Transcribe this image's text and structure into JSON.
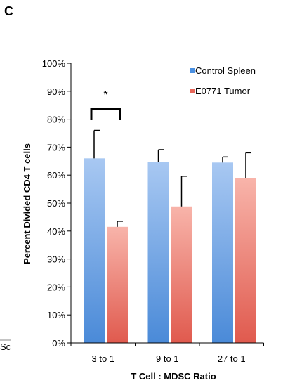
{
  "panel_label": "C",
  "cropped_text": "Sc",
  "colors": {
    "control_top": "#a8c8f2",
    "control_bottom": "#4a8ad8",
    "tumor_top": "#f8b4aa",
    "tumor_bottom": "#e05a4e",
    "control_legend": "#4a90e2",
    "tumor_legend": "#e8675a"
  },
  "chart_data": {
    "type": "bar",
    "categories": [
      "3 to 1",
      "9 to 1",
      "27 to 1"
    ],
    "series": [
      {
        "name": "Control Spleen",
        "values": [
          66,
          64.8,
          64.5
        ],
        "errors": [
          10,
          4.3,
          2
        ]
      },
      {
        "name": "E0771 Tumor",
        "values": [
          41.5,
          48.8,
          58.8
        ],
        "errors": [
          2,
          10.8,
          9.2
        ]
      }
    ],
    "ylim": [
      0,
      100
    ],
    "yticks": [
      "0%",
      "10%",
      "20%",
      "30%",
      "40%",
      "50%",
      "60%",
      "70%",
      "80%",
      "90%",
      "100%"
    ],
    "ylabel": "Percent Divided CD4 T cells",
    "xlabel": "T Cell : MDSC Ratio",
    "legend_position": "top-right",
    "significance": {
      "category": "3 to 1",
      "label": "*"
    }
  }
}
